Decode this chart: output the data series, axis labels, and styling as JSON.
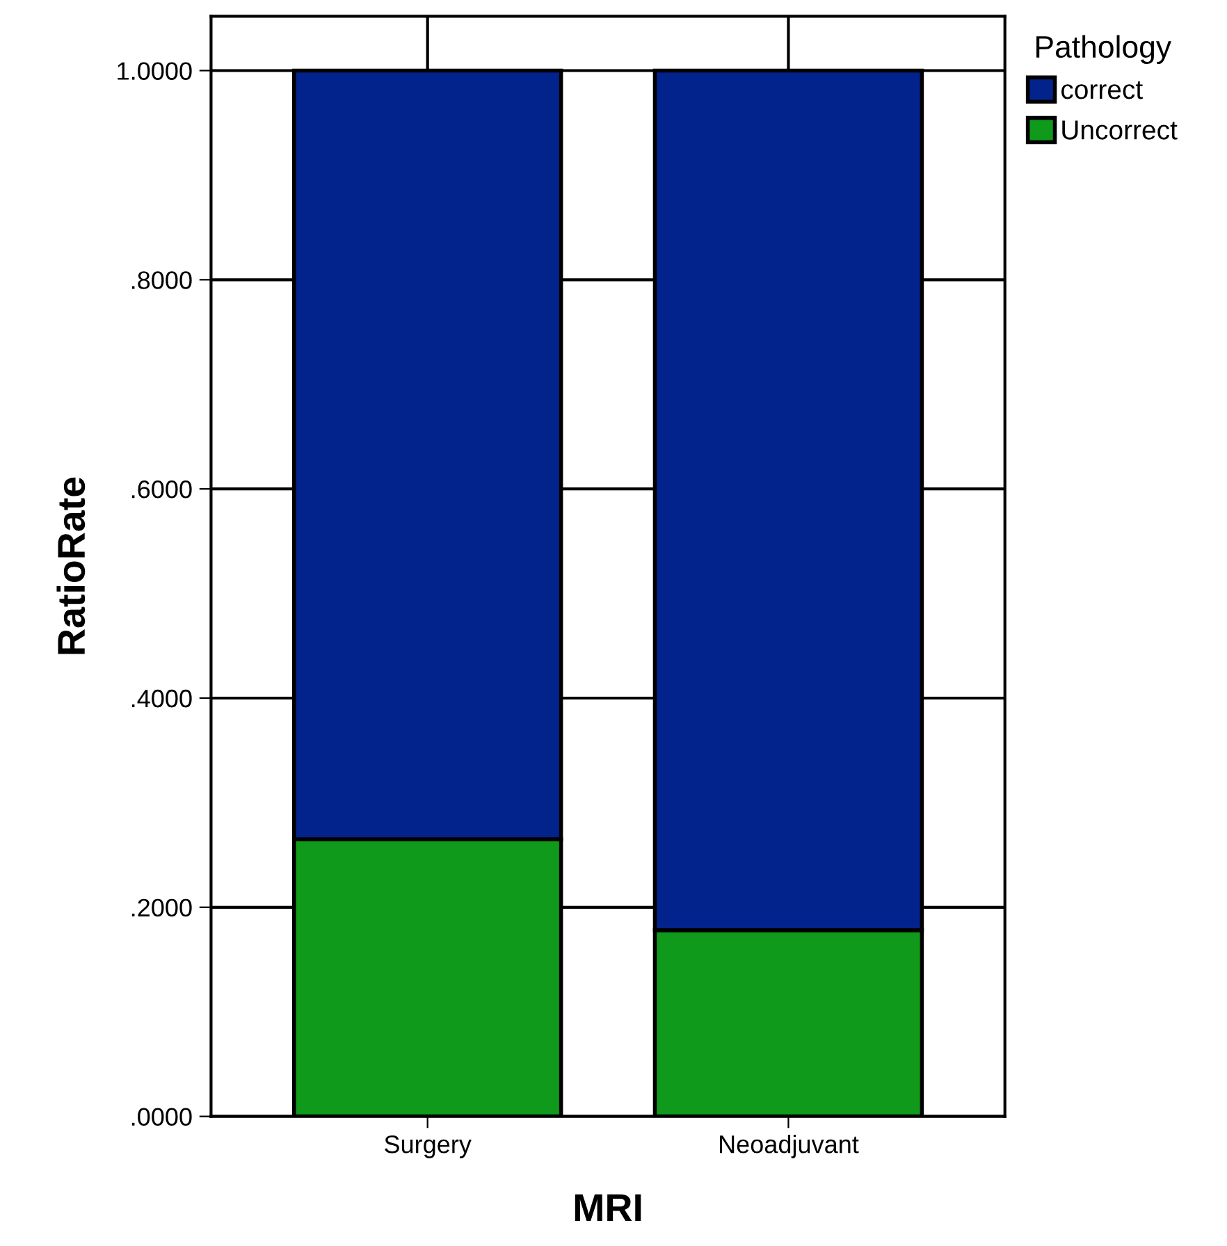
{
  "chart_data": {
    "type": "bar",
    "stacked": true,
    "xlabel": "MRI",
    "ylabel": "RatioRate",
    "legend_title": "Pathology",
    "legend": "top right",
    "grid": true,
    "categories": [
      "Surgery",
      "Neoadjuvant"
    ],
    "series": [
      {
        "name": "Uncorrect",
        "color": "#0f9a1c",
        "values": [
          0.265,
          0.178
        ]
      },
      {
        "name": "correct",
        "color": "#03238c",
        "values": [
          0.735,
          0.822
        ]
      }
    ],
    "ylim": [
      0,
      1.052
    ],
    "yticks": [
      {
        "value": 0,
        "label": ".0000"
      },
      {
        "value": 0.2,
        "label": ".2000"
      },
      {
        "value": 0.4,
        "label": ".4000"
      },
      {
        "value": 0.6,
        "label": ".6000"
      },
      {
        "value": 0.8,
        "label": ".8000"
      },
      {
        "value": 1.0,
        "label": "1.0000"
      }
    ]
  }
}
